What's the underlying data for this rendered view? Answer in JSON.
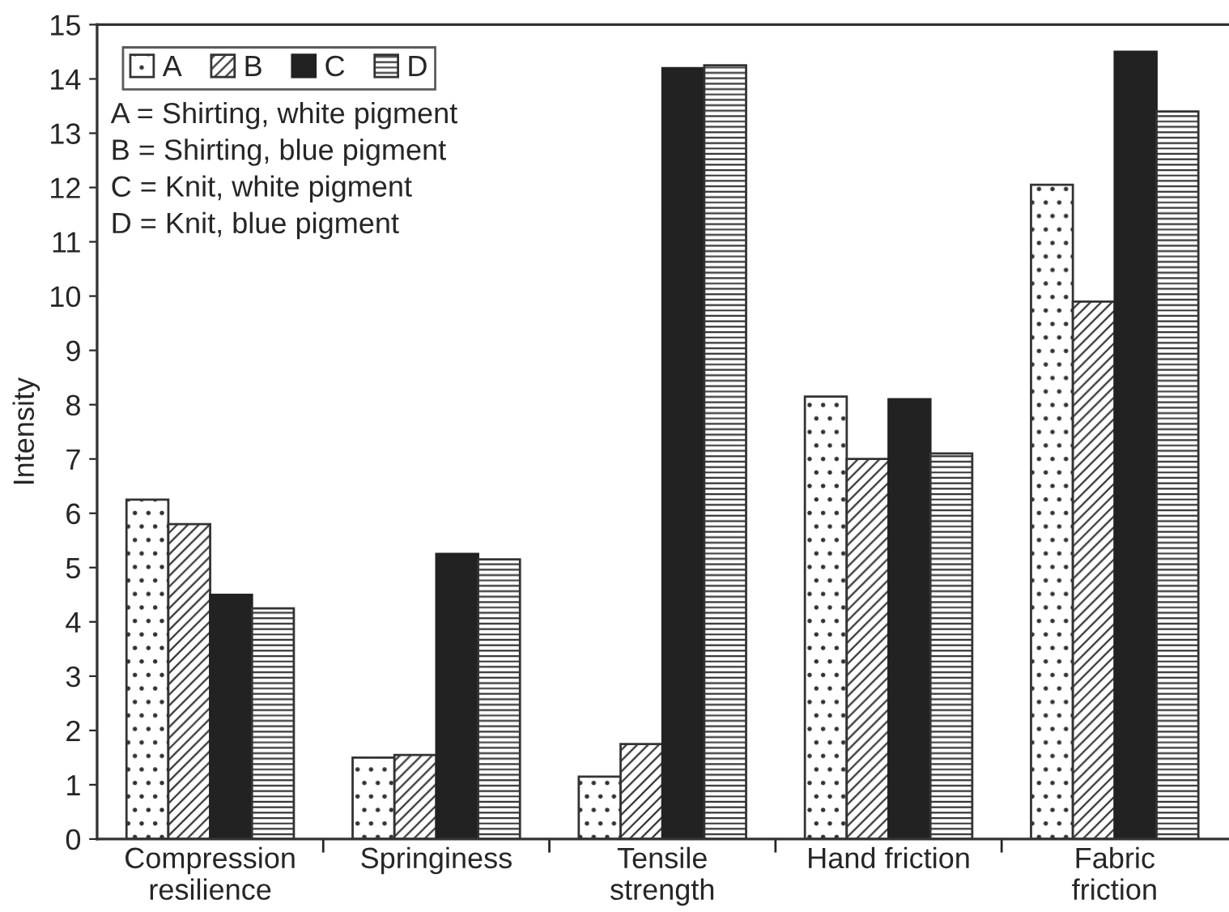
{
  "chart_data": {
    "type": "bar",
    "ylabel": "Intensity",
    "categories": [
      "Compression\nresilience",
      "Springiness",
      "Tensile\nstrength",
      "Hand friction",
      "Fabric\nfriction"
    ],
    "series": [
      {
        "name": "A",
        "color": "#333333",
        "values": [
          6.25,
          1.5,
          1.15,
          8.15,
          12.05
        ]
      },
      {
        "name": "B",
        "color": "#333333",
        "values": [
          5.8,
          1.55,
          1.75,
          7.0,
          9.9
        ]
      },
      {
        "name": "C",
        "color": "#222222",
        "values": [
          4.5,
          5.25,
          14.2,
          8.1,
          14.5
        ]
      },
      {
        "name": "D",
        "color": "#333333",
        "values": [
          4.25,
          5.15,
          14.25,
          7.1,
          13.4
        ]
      }
    ],
    "ylim": [
      0,
      15
    ],
    "yticks": [
      0,
      1,
      2,
      3,
      4,
      5,
      6,
      7,
      8,
      9,
      10,
      11,
      12,
      13,
      14,
      15
    ],
    "annotations": [
      "A = Shirting, white pigment",
      "B = Shirting, blue pigment",
      "C = Knit, white pigment",
      "D = Knit, blue pigment"
    ],
    "legend": "top left",
    "grid": false
  }
}
